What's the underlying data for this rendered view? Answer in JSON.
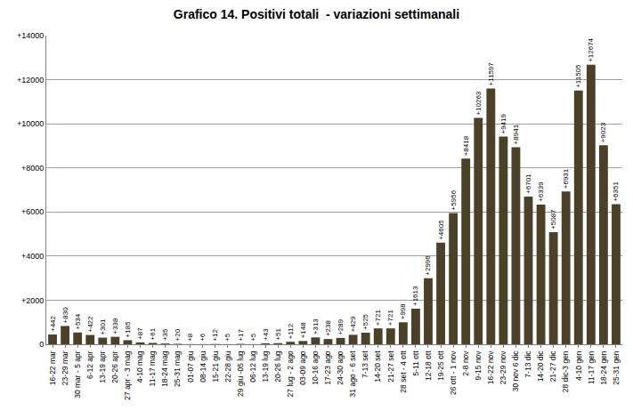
{
  "chart_data": {
    "type": "bar",
    "title": "Grafico 14. Positivi totali  - variazioni settimanali",
    "categories": [
      "16-22 mar",
      "23-29 mar",
      "30 mar - 5 apr",
      "6-12 apr",
      "13-19 apr",
      "20-26 apr",
      "27 apr - 3 mag",
      "4-10 mag",
      "11-17 mag",
      "18-24 mag",
      "25-31 mag",
      "01-07 giu",
      "08-14 giu",
      "15-21 giu",
      "22-28 giu",
      "29 giu -05 lug",
      "06-12 lug",
      "13-19 lug",
      "20-26 lug",
      "27 lug - 2 ago",
      "03-09 ago",
      "10-16 ago",
      "17-23 ago",
      "24-30 ago",
      "31 ago - 6 set",
      "7-13 set",
      "14-20 set",
      "21-27 set",
      "28 set - 4 ott",
      "5-11 ott",
      "12-18 ott",
      "19-25 ott",
      "26 ott - 1 nov",
      "2-8 nov",
      "9-15 nov",
      "16-22 nov",
      "23-29 nov",
      "30 nov 6 dic",
      "7-13 dic",
      "14-20 dic",
      "21-27 dic",
      "28 dic-3 gen",
      "4-10 gen",
      "11-17 gen",
      "18-24 gen",
      "25-31 gen"
    ],
    "values": [
      442,
      830,
      534,
      422,
      301,
      338,
      185,
      87,
      61,
      35,
      20,
      8,
      6,
      12,
      5,
      17,
      5,
      43,
      51,
      112,
      148,
      313,
      238,
      289,
      429,
      525,
      721,
      721,
      998,
      1613,
      2996,
      4605,
      5956,
      8418,
      10263,
      11597,
      9419,
      8941,
      6701,
      6339,
      5087,
      6931,
      11505,
      12674,
      9023,
      6351
    ],
    "value_labels": [
      "+442",
      "+830",
      "+534",
      "+422",
      "+301",
      "+338",
      "+185",
      "+87",
      "+61",
      "+35",
      "+20",
      "+8",
      "+6",
      "+12",
      "+5",
      "+17",
      "+5",
      "+43",
      "+51",
      "+112",
      "+148",
      "+313",
      "+238",
      "+289",
      "+429",
      "+525",
      "+721",
      "+721",
      "+998",
      "+1613",
      "+2996",
      "+4605",
      "+5956",
      "+8418",
      "+10263",
      "+11597",
      "+9419",
      "+8941",
      "+6701",
      "+6339",
      "+5087",
      "+6931",
      "+11505",
      "+12674",
      "+9023",
      "+6351"
    ],
    "color": "#4a4128",
    "ylim": [
      0,
      14000
    ],
    "yticks": [
      0,
      {
        "value": 2000,
        "label": "+2000"
      },
      {
        "value": 4000,
        "label": "+4000"
      },
      {
        "value": 6000,
        "label": "+6000"
      },
      {
        "value": 8000,
        "label": "+8000"
      },
      {
        "value": 10000,
        "label": "+10000"
      },
      {
        "value": 12000,
        "label": "+12000"
      },
      {
        "value": 14000,
        "label": "+14000"
      }
    ],
    "grid": true,
    "data_labels": true
  }
}
